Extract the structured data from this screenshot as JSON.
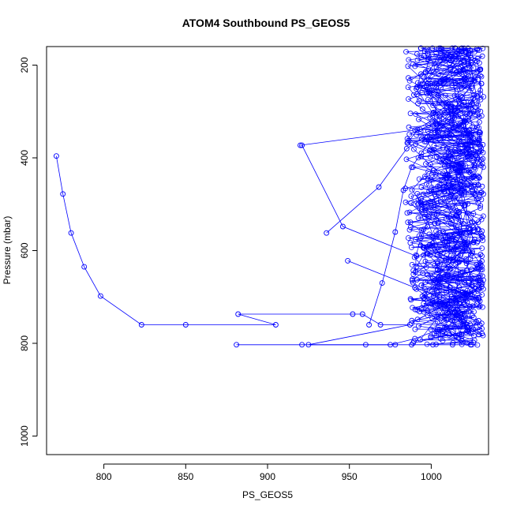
{
  "chart_data": {
    "type": "line",
    "title": "ATOM4 Southbound PS_GEOS5",
    "xlabel": "PS_GEOS5",
    "ylabel": "Pressure (mbar)",
    "xlim": [
      765,
      1035
    ],
    "ylim": [
      1040,
      160
    ],
    "y_reversed": true,
    "x_ticks": [
      800,
      850,
      900,
      950,
      1000
    ],
    "y_ticks": [
      200,
      400,
      600,
      800,
      1000
    ],
    "grid": false,
    "legend": "none",
    "series_color": "#0000ff",
    "marker": "open-circle",
    "series": [
      {
        "values_x": [
          771,
          775,
          780,
          788,
          798,
          823,
          850,
          905,
          882,
          952,
          958,
          969,
          987,
          925,
          960,
          978,
          988,
          1001,
          1013,
          1024
        ],
        "values_y": [
          396,
          478,
          562,
          635,
          698,
          760,
          760,
          760,
          737,
          737,
          737,
          760,
          760,
          803,
          803,
          803,
          803,
          803,
          803,
          803
        ]
      },
      {
        "values_x": [
          881,
          921,
          975,
          990,
          1005,
          1018,
          1025
        ],
        "values_y": [
          803,
          803,
          803,
          790,
          770,
          750,
          740
        ]
      },
      {
        "values_x": [
          921,
          946,
          991,
          1010,
          1003,
          1018,
          1024
        ],
        "values_y": [
          373,
          548,
          612,
          590,
          570,
          560,
          555
        ]
      },
      {
        "values_x": [
          936,
          968,
          985,
          1002,
          1012,
          1020
        ],
        "values_y": [
          562,
          463,
          380,
          340,
          300,
          280
        ]
      },
      {
        "values_x": [
          949,
          990,
          1005,
          1015,
          1022
        ],
        "values_y": [
          622,
          680,
          700,
          710,
          712
        ]
      },
      {
        "values_x": [
          920,
          990,
          1005,
          1012
        ],
        "values_y": [
          373,
          340,
          310,
          290
        ]
      },
      {
        "values_x": [
          962,
          970,
          978,
          983,
          988,
          994,
          1000,
          1007,
          1013,
          1019,
          1025,
          1030
        ],
        "values_y": [
          760,
          670,
          560,
          470,
          420,
          390,
          360,
          330,
          300,
          270,
          240,
          210
        ]
      }
    ],
    "dense_region": {
      "x_range": [
        975,
        1032
      ],
      "y_range": [
        160,
        805
      ],
      "description_points": 900
    }
  }
}
